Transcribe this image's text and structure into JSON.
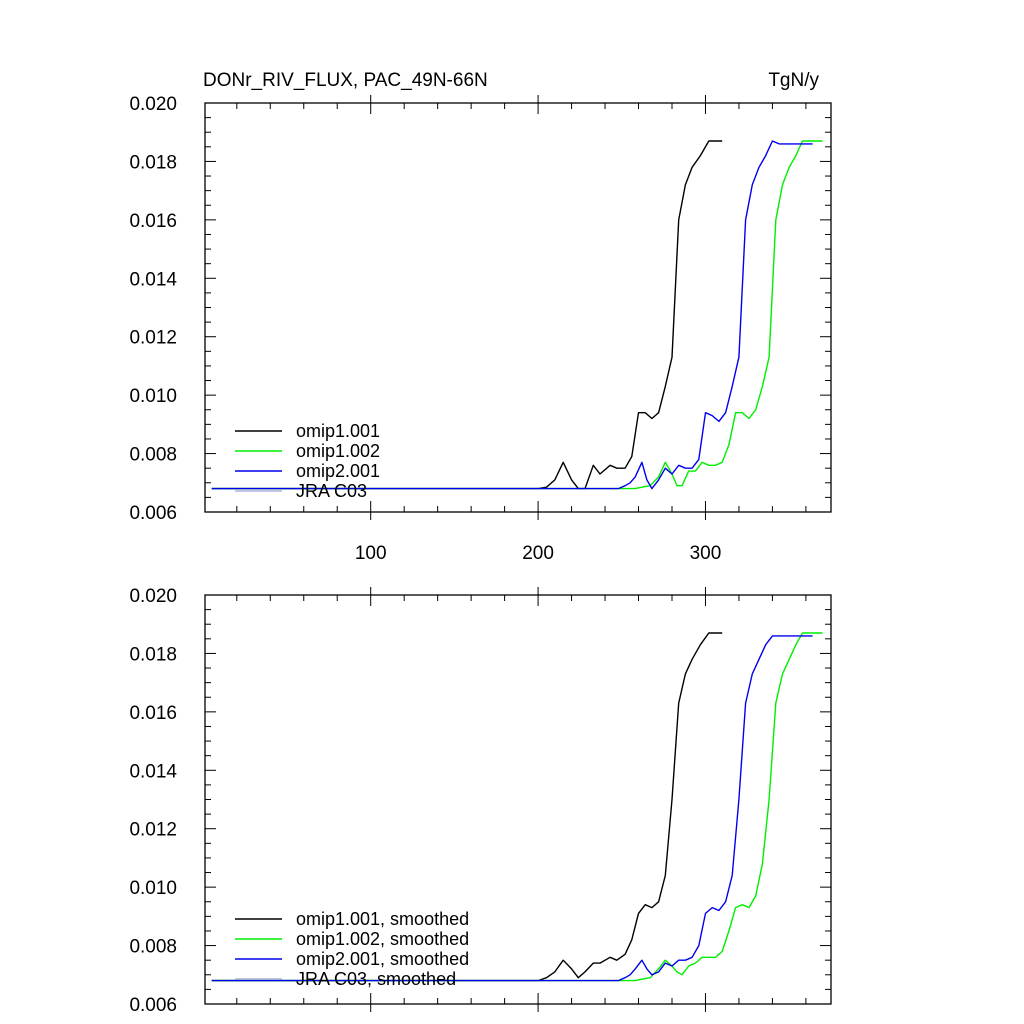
{
  "chart_data": [
    {
      "type": "line",
      "title": "DONr_RIV_FLUX, PAC_49N-66N",
      "units": "TgN/y",
      "xlim": [
        1,
        375
      ],
      "ylim": [
        0.006,
        0.02
      ],
      "xticks": [
        100,
        200,
        300
      ],
      "xtick_labels": [
        "100",
        "200",
        "300"
      ],
      "yticks": [
        0.006,
        0.008,
        0.01,
        0.012,
        0.014,
        0.016,
        0.018,
        0.02
      ],
      "ytick_labels": [
        "0.006",
        "0.008",
        "0.010",
        "0.012",
        "0.014",
        "0.016",
        "0.018",
        "0.020"
      ],
      "legend_position": "bottom-left",
      "series": [
        {
          "name": "omip1.001",
          "color": "#000000",
          "x": [
            5,
            200,
            205,
            210,
            215,
            220,
            224,
            228,
            233,
            237,
            243,
            247,
            252,
            256,
            260,
            264,
            268,
            272,
            276,
            280,
            284,
            288,
            292,
            297,
            302,
            306,
            310
          ],
          "y": [
            0.0068,
            0.0068,
            0.00685,
            0.0071,
            0.0077,
            0.0071,
            0.0068,
            0.0068,
            0.0076,
            0.0073,
            0.0076,
            0.0075,
            0.0075,
            0.0079,
            0.0094,
            0.0094,
            0.0092,
            0.0094,
            0.0103,
            0.0113,
            0.016,
            0.0172,
            0.0178,
            0.0182,
            0.0187,
            0.0187,
            0.0187
          ]
        },
        {
          "name": "omip1.002",
          "color": "#00ee00",
          "x": [
            5,
            252,
            258,
            262,
            267,
            272,
            276,
            280,
            283,
            286,
            290,
            294,
            298,
            302,
            306,
            310,
            314,
            318,
            322,
            326,
            330,
            334,
            338,
            342,
            346,
            350,
            354,
            358,
            362,
            366,
            370
          ],
          "y": [
            0.0068,
            0.0068,
            0.0068,
            0.00685,
            0.0069,
            0.0072,
            0.0077,
            0.0073,
            0.0069,
            0.0069,
            0.0074,
            0.0074,
            0.0077,
            0.0076,
            0.0076,
            0.0077,
            0.0083,
            0.0094,
            0.0094,
            0.0092,
            0.0095,
            0.0103,
            0.0113,
            0.016,
            0.0172,
            0.0178,
            0.0182,
            0.0187,
            0.0187,
            0.0187,
            0.0187
          ]
        },
        {
          "name": "omip2.001",
          "color": "#0000ee",
          "x": [
            5,
            248,
            252,
            255,
            258,
            262,
            265,
            268,
            272,
            276,
            280,
            284,
            288,
            292,
            296,
            300,
            304,
            308,
            312,
            316,
            320,
            324,
            328,
            332,
            336,
            340,
            344,
            348,
            352,
            356,
            360,
            364
          ],
          "y": [
            0.0068,
            0.0068,
            0.0069,
            0.007,
            0.0072,
            0.0077,
            0.0071,
            0.0068,
            0.0071,
            0.0075,
            0.0073,
            0.0076,
            0.0075,
            0.0075,
            0.0078,
            0.0094,
            0.0093,
            0.0091,
            0.0094,
            0.0103,
            0.0113,
            0.016,
            0.0172,
            0.0178,
            0.0182,
            0.0187,
            0.0186,
            0.0186,
            0.0186,
            0.0186,
            0.0186,
            0.0186
          ]
        },
        {
          "name": "JRA C03",
          "color": "#aab4dc",
          "x": [],
          "y": []
        }
      ]
    },
    {
      "type": "line",
      "title": "",
      "xlim": [
        1,
        375
      ],
      "ylim": [
        0.006,
        0.02
      ],
      "xticks": [
        100,
        200,
        300
      ],
      "yticks": [
        0.006,
        0.008,
        0.01,
        0.012,
        0.014,
        0.016,
        0.018,
        0.02
      ],
      "ytick_labels": [
        "0.006",
        "0.008",
        "0.010",
        "0.012",
        "0.014",
        "0.016",
        "0.018",
        "0.020"
      ],
      "legend_position": "bottom-left",
      "series": [
        {
          "name": "omip1.001, smoothed",
          "color": "#000000",
          "x": [
            5,
            200,
            205,
            210,
            215,
            220,
            224,
            228,
            233,
            237,
            243,
            247,
            252,
            256,
            260,
            264,
            268,
            272,
            276,
            280,
            284,
            288,
            292,
            297,
            302,
            306,
            310
          ],
          "y": [
            0.0068,
            0.0068,
            0.0069,
            0.0071,
            0.0075,
            0.0072,
            0.0069,
            0.0071,
            0.0074,
            0.0074,
            0.0076,
            0.0075,
            0.0077,
            0.0082,
            0.0091,
            0.0094,
            0.0093,
            0.0095,
            0.0104,
            0.013,
            0.0163,
            0.0173,
            0.0178,
            0.0183,
            0.0187,
            0.0187,
            0.0187
          ]
        },
        {
          "name": "omip1.002, smoothed",
          "color": "#00ee00",
          "x": [
            5,
            252,
            258,
            262,
            267,
            272,
            276,
            280,
            283,
            286,
            290,
            294,
            298,
            302,
            306,
            310,
            314,
            318,
            322,
            326,
            330,
            334,
            338,
            342,
            346,
            350,
            354,
            358,
            362,
            366,
            370
          ],
          "y": [
            0.0068,
            0.0068,
            0.0068,
            0.00685,
            0.0069,
            0.0072,
            0.0075,
            0.0073,
            0.0071,
            0.007,
            0.0073,
            0.0074,
            0.0076,
            0.0076,
            0.0076,
            0.0078,
            0.0085,
            0.0093,
            0.0094,
            0.0093,
            0.0097,
            0.0108,
            0.013,
            0.0163,
            0.0173,
            0.0178,
            0.0183,
            0.0187,
            0.0187,
            0.0187,
            0.0187
          ]
        },
        {
          "name": "omip2.001, smoothed",
          "color": "#0000ee",
          "x": [
            5,
            248,
            252,
            255,
            258,
            262,
            265,
            268,
            272,
            276,
            280,
            284,
            288,
            292,
            296,
            300,
            304,
            308,
            312,
            316,
            320,
            324,
            328,
            332,
            336,
            340,
            344,
            348,
            352,
            356,
            360,
            364
          ],
          "y": [
            0.0068,
            0.0068,
            0.0069,
            0.007,
            0.0072,
            0.0075,
            0.0072,
            0.007,
            0.0071,
            0.0074,
            0.0073,
            0.0075,
            0.0075,
            0.0076,
            0.008,
            0.0091,
            0.0093,
            0.0092,
            0.0095,
            0.0104,
            0.013,
            0.0163,
            0.0173,
            0.0178,
            0.0183,
            0.0186,
            0.0186,
            0.0186,
            0.0186,
            0.0186,
            0.0186,
            0.0186
          ]
        },
        {
          "name": "JRA C03, smoothed",
          "color": "#aab4dc",
          "x": [],
          "y": []
        }
      ]
    }
  ]
}
